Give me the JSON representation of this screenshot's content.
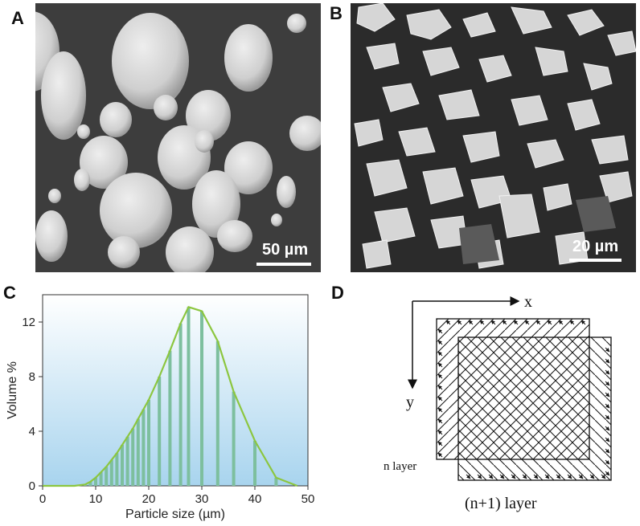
{
  "panels": {
    "a": {
      "letter": "A",
      "scale_label": "50 µm"
    },
    "b": {
      "letter": "B",
      "scale_label": "20 µm"
    },
    "c": {
      "letter": "C"
    },
    "d": {
      "letter": "D"
    }
  },
  "chart_data": {
    "type": "bar",
    "xlabel": "Particle size (µm)",
    "ylabel": "Volume %",
    "xlim": [
      0,
      50
    ],
    "ylim": [
      0,
      14
    ],
    "xticks": [
      "0",
      "10",
      "20",
      "30",
      "40",
      "50"
    ],
    "yticks": [
      "0",
      "4",
      "8",
      "12"
    ],
    "x": [
      0,
      2,
      4,
      6,
      8,
      9,
      10,
      11,
      12,
      13,
      14,
      15,
      16,
      17,
      18,
      19,
      20,
      22,
      24,
      26,
      27.5,
      30,
      33,
      36,
      40,
      44,
      48
    ],
    "values": [
      0,
      0,
      0,
      0,
      0.1,
      0.3,
      0.6,
      1.0,
      1.4,
      1.9,
      2.4,
      3.0,
      3.6,
      4.2,
      4.9,
      5.6,
      6.3,
      8.0,
      9.9,
      11.9,
      13.1,
      12.8,
      10.6,
      6.9,
      3.3,
      0.6,
      0
    ],
    "colors": {
      "bar": "#7dbf9e",
      "line": "#8cc63f",
      "bg_top": "#ffffff",
      "bg_bottom": "#a8d4ee"
    }
  },
  "diagram": {
    "x_label": "x",
    "y_label": "y",
    "n_layer_label": "n layer",
    "n1_layer_label": "(n+1) layer"
  }
}
